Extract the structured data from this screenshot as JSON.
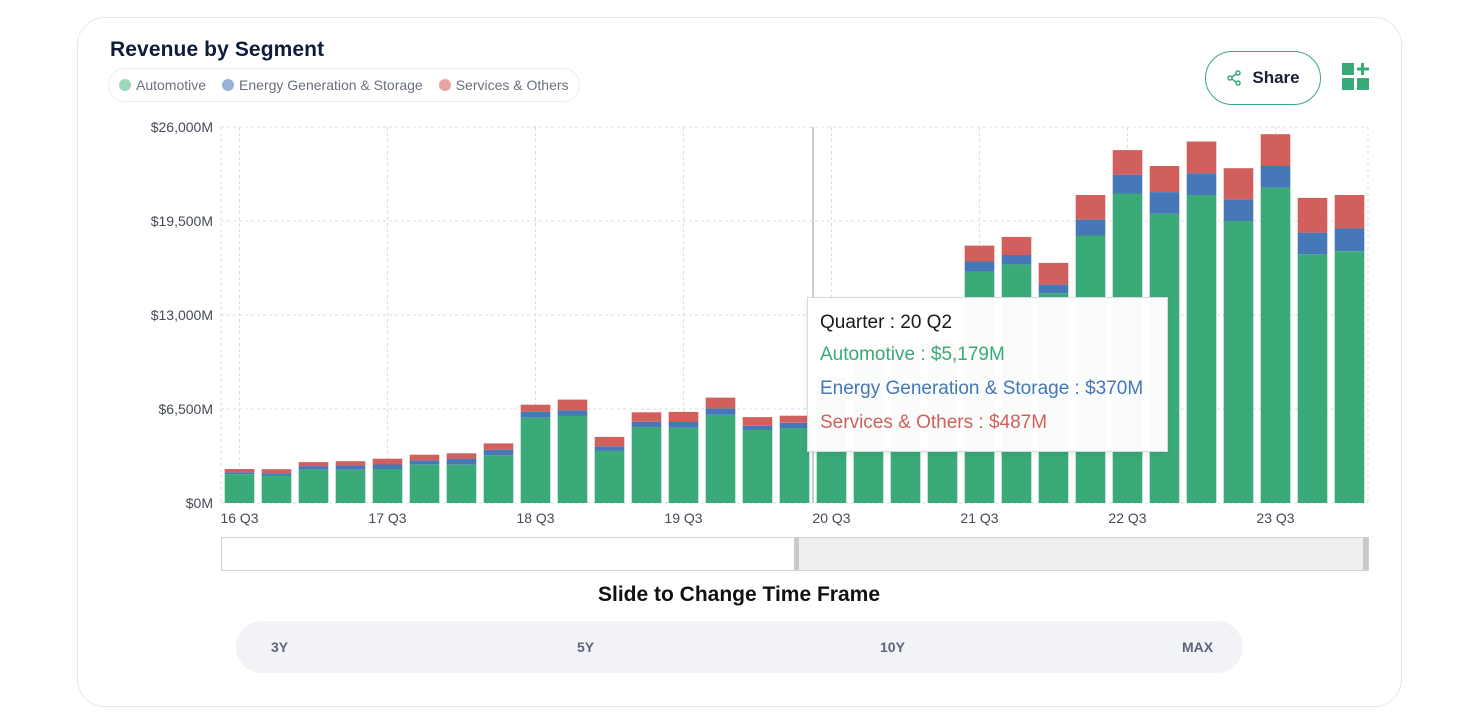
{
  "card": {
    "title": "Revenue by Segment"
  },
  "legend": [
    {
      "label": "Automotive",
      "color": "#9ed5bd"
    },
    {
      "label": "Energy Generation & Storage",
      "color": "#97b3d6"
    },
    {
      "label": "Services & Others",
      "color": "#e8a4a2"
    }
  ],
  "toolbar": {
    "share_label": "Share",
    "share_icon": "share-icon",
    "add_widget_icon": "add-widget-icon"
  },
  "tooltip": {
    "quarter": "Quarter : 20 Q2",
    "automotive": "Automotive : $5,179M",
    "energy": "Energy Generation & Storage : $370M",
    "services": "Services & Others : $487M"
  },
  "slider": {
    "caption": "Slide to Change Time Frame"
  },
  "timeframes": [
    "3Y",
    "5Y",
    "10Y",
    "MAX"
  ],
  "chart_data": {
    "type": "bar",
    "stacked": true,
    "title": "",
    "xlabel": "",
    "ylabel": "",
    "ylim": [
      0,
      26000
    ],
    "yticks": [
      "$0M",
      "$6,500M",
      "$13,000M",
      "$19,500M",
      "$26,000M"
    ],
    "ytick_values": [
      0,
      6500,
      13000,
      19500,
      26000
    ],
    "xtick_labels": [
      "16 Q3",
      "17 Q3",
      "18 Q3",
      "19 Q3",
      "20 Q3",
      "21 Q3",
      "22 Q3",
      "23 Q3"
    ],
    "categories": [
      "16 Q3",
      "16 Q4",
      "17 Q1",
      "17 Q2",
      "17 Q3",
      "17 Q4",
      "18 Q1",
      "18 Q2",
      "18 Q3",
      "18 Q4",
      "19 Q1",
      "19 Q2",
      "19 Q3",
      "19 Q4",
      "20 Q1",
      "20 Q2",
      "20 Q3",
      "20 Q4",
      "21 Q1",
      "21 Q2",
      "21 Q3",
      "21 Q4",
      "22 Q1",
      "22 Q2",
      "22 Q3",
      "22 Q4",
      "23 Q1",
      "23 Q2",
      "23 Q3",
      "23 Q4",
      "24 Q1"
    ],
    "grid": true,
    "legend_position": "top-left",
    "series": [
      {
        "name": "Automotive",
        "color": "#3aaa78",
        "values": [
          2000,
          1900,
          2300,
          2300,
          2350,
          2650,
          2650,
          3300,
          5900,
          6050,
          3600,
          5250,
          5200,
          6100,
          5050,
          5179,
          7600,
          9300,
          9000,
          9500,
          16000,
          16500,
          14500,
          18500,
          21400,
          20000,
          21300,
          19500,
          21800,
          17200,
          17400
        ]
      },
      {
        "name": "Energy Generation & Storage",
        "color": "#4677b6",
        "values": [
          120,
          160,
          250,
          300,
          310,
          300,
          410,
          380,
          400,
          370,
          320,
          370,
          400,
          440,
          290,
          370,
          580,
          750,
          500,
          800,
          700,
          650,
          600,
          1100,
          1300,
          1500,
          1500,
          1500,
          1500,
          1500,
          1600
        ]
      },
      {
        "name": "Services & Others",
        "color": "#d1605d",
        "values": [
          230,
          280,
          280,
          290,
          400,
          390,
          380,
          440,
          500,
          730,
          650,
          650,
          700,
          750,
          600,
          487,
          500,
          650,
          700,
          800,
          1100,
          1250,
          1500,
          1700,
          1700,
          1800,
          2200,
          2150,
          2200,
          2400,
          2300
        ]
      }
    ],
    "tooltip_category": "20 Q2"
  }
}
